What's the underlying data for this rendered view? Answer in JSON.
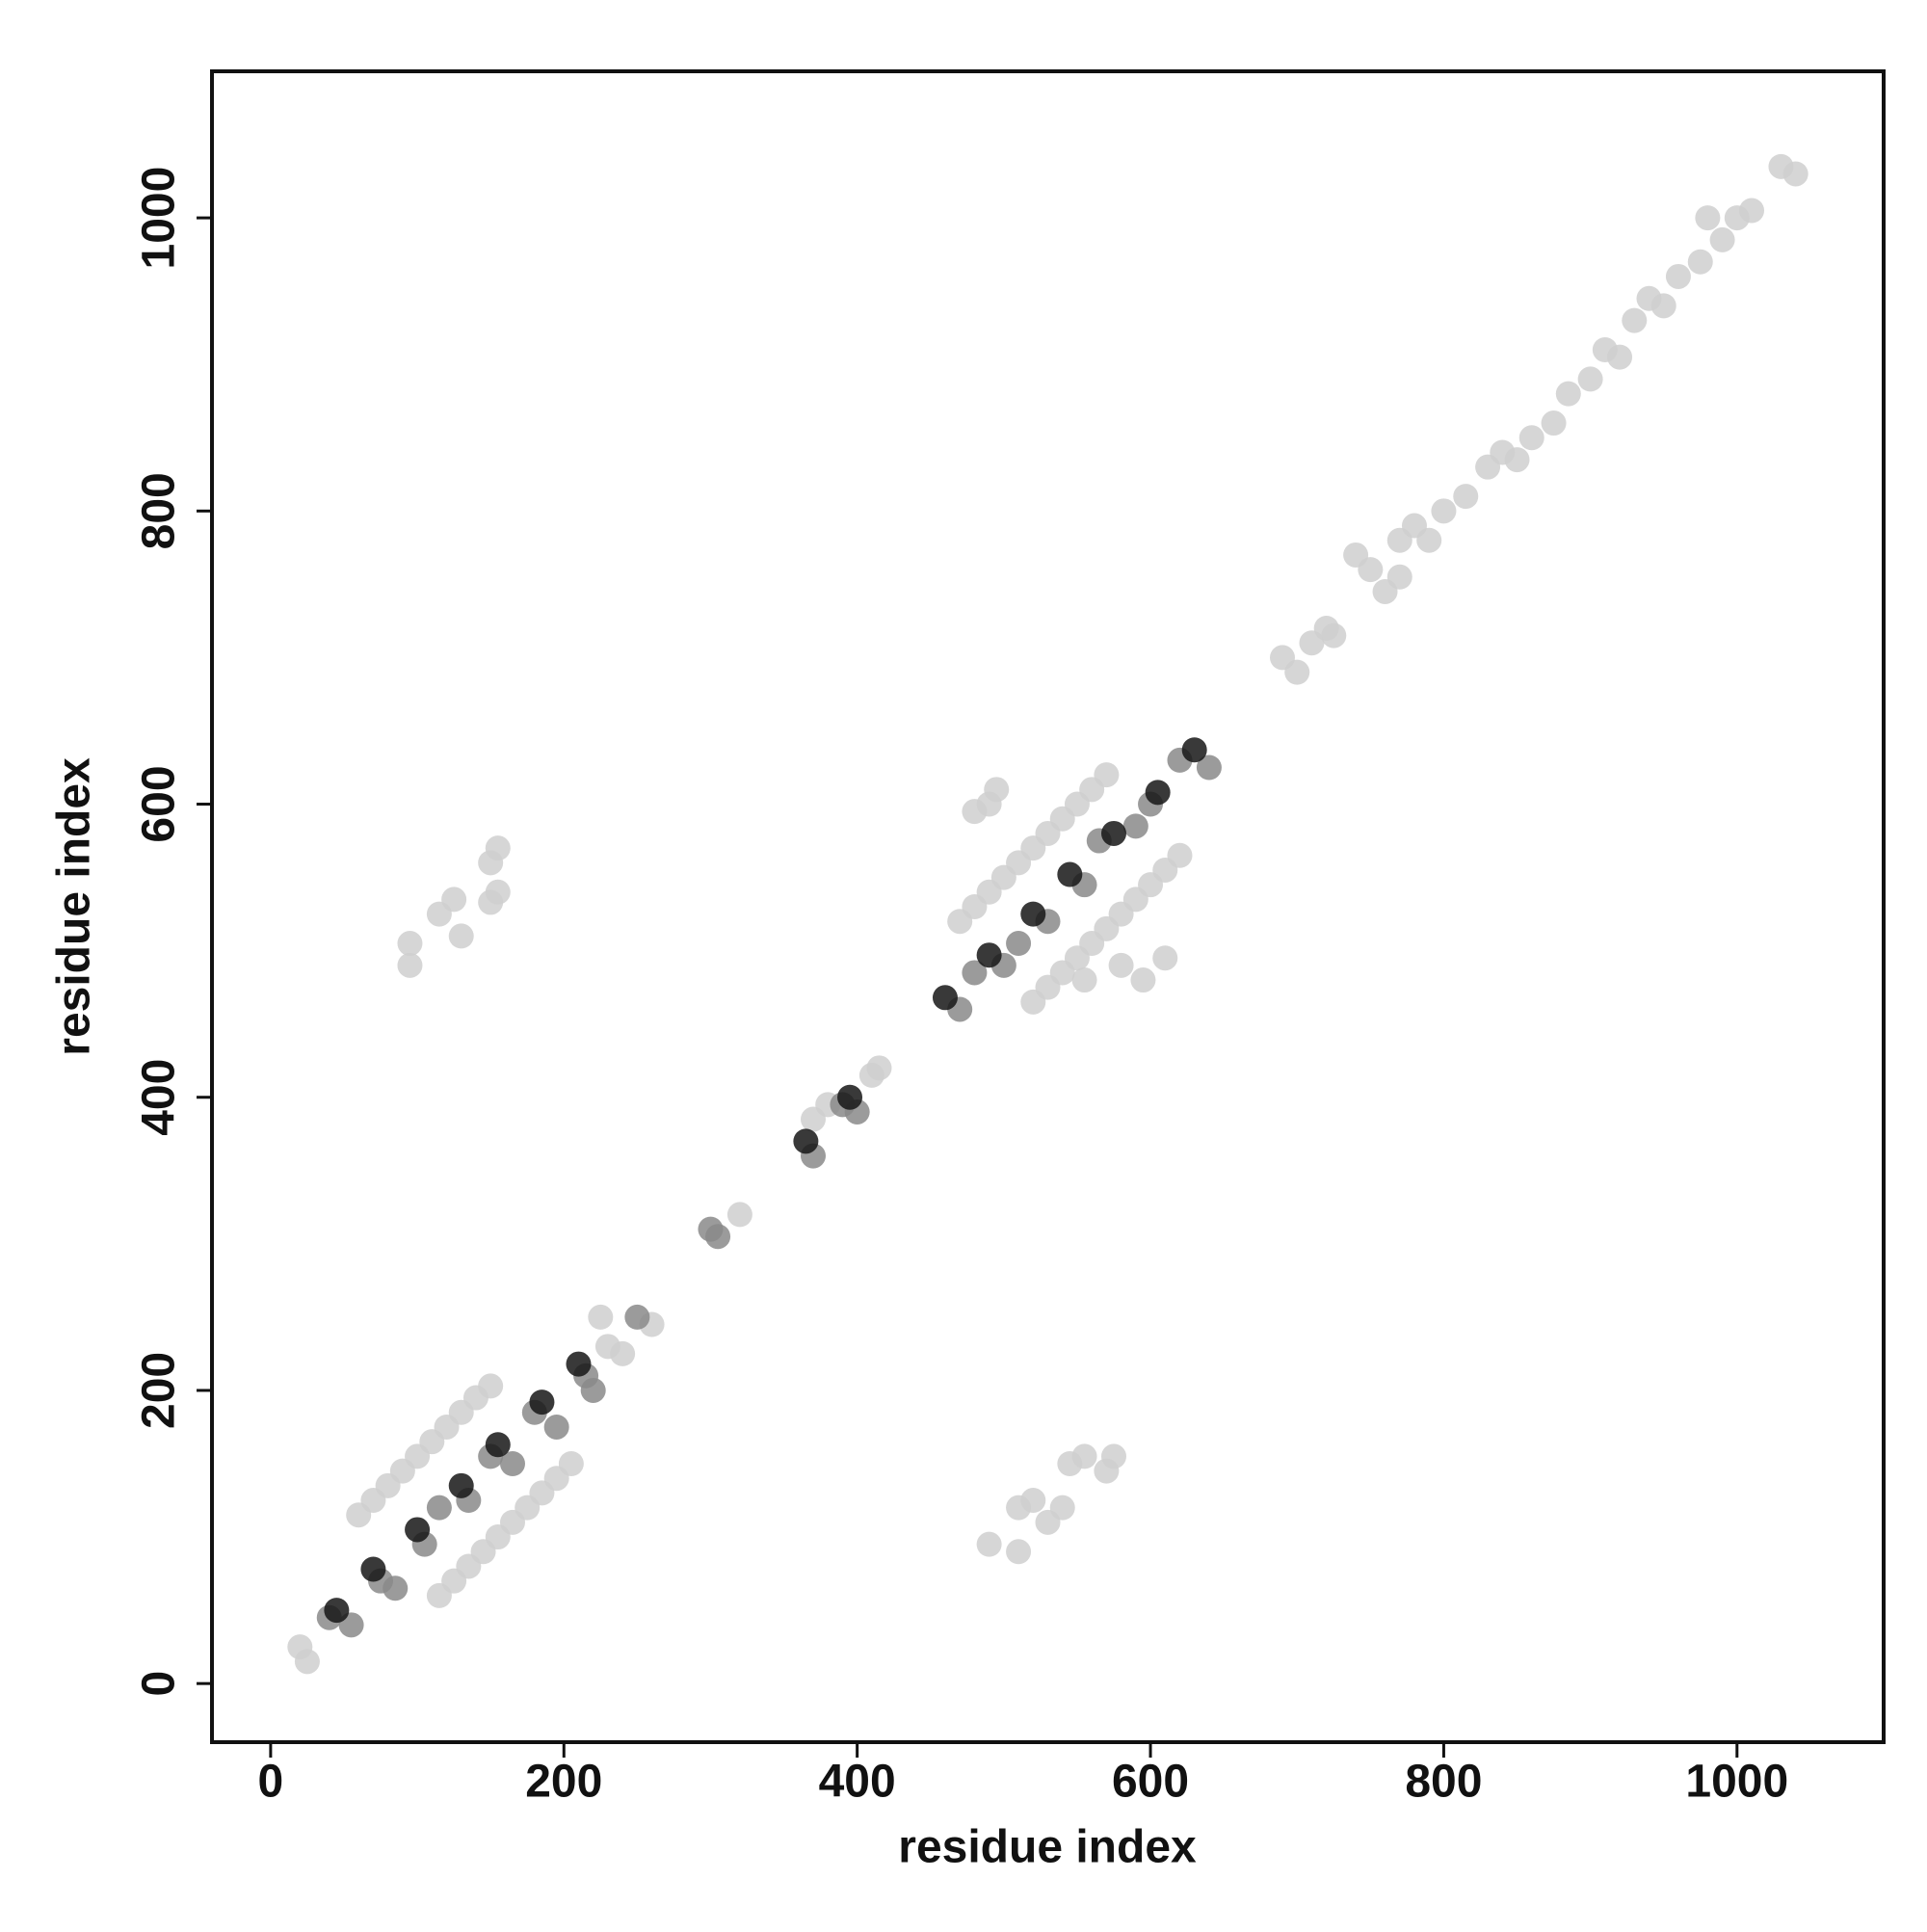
{
  "chart_data": {
    "type": "scatter",
    "xlabel": "residue index",
    "ylabel": "residue index",
    "xlim": [
      -40,
      1100
    ],
    "ylim": [
      -40,
      1100
    ],
    "xticks": [
      0,
      200,
      400,
      600,
      800,
      1000
    ],
    "yticks": [
      0,
      200,
      400,
      600,
      800,
      1000
    ],
    "series": [
      {
        "color": "#cfcfcf",
        "x": [
          60,
          70,
          80,
          90,
          100,
          110,
          120,
          130,
          140,
          150,
          115,
          125,
          135,
          145,
          155,
          165,
          175,
          185,
          195,
          205,
          20,
          25,
          95,
          95,
          115,
          125,
          130,
          150,
          155,
          155,
          150,
          490,
          510,
          510,
          520,
          530,
          540,
          545,
          555,
          570,
          575,
          470,
          480,
          490,
          500,
          510,
          520,
          530,
          540,
          550,
          560,
          570,
          520,
          530,
          540,
          550,
          560,
          570,
          580,
          590,
          600,
          610,
          620,
          490,
          495,
          480,
          555,
          580,
          595,
          610,
          230,
          240,
          225,
          260,
          320,
          370,
          380,
          410,
          415,
          690,
          700,
          710,
          725,
          720,
          740,
          750,
          760,
          770,
          770,
          780,
          790,
          800,
          815,
          830,
          840,
          850,
          860,
          875,
          885,
          900,
          910,
          920,
          930,
          940,
          950,
          960,
          975,
          980,
          990,
          1000,
          1010,
          1030,
          1040
        ],
        "values": [
          115,
          125,
          135,
          145,
          155,
          165,
          175,
          185,
          195,
          203,
          60,
          70,
          80,
          90,
          100,
          110,
          120,
          130,
          140,
          150,
          25,
          15,
          505,
          490,
          525,
          535,
          510,
          560,
          570,
          540,
          533,
          95,
          90,
          120,
          125,
          110,
          120,
          150,
          155,
          145,
          155,
          520,
          530,
          540,
          550,
          560,
          570,
          580,
          590,
          600,
          610,
          620,
          465,
          475,
          485,
          495,
          505,
          515,
          525,
          535,
          545,
          555,
          565,
          600,
          610,
          595,
          480,
          490,
          480,
          495,
          230,
          225,
          250,
          245,
          320,
          385,
          395,
          415,
          420,
          700,
          690,
          710,
          715,
          720,
          770,
          760,
          745,
          755,
          780,
          790,
          780,
          800,
          810,
          830,
          840,
          835,
          850,
          860,
          880,
          890,
          910,
          905,
          930,
          945,
          940,
          960,
          970,
          1000,
          985,
          1000,
          1005,
          1035,
          1030
        ]
      },
      {
        "color": "#8a8a8a",
        "x": [
          40,
          55,
          75,
          85,
          105,
          115,
          135,
          150,
          165,
          180,
          195,
          215,
          220,
          250,
          305,
          300,
          390,
          400,
          370,
          470,
          480,
          500,
          510,
          530,
          555,
          565,
          590,
          600,
          620,
          640
        ],
        "values": [
          45,
          40,
          70,
          65,
          95,
          120,
          125,
          155,
          150,
          185,
          175,
          210,
          200,
          250,
          305,
          310,
          395,
          390,
          360,
          460,
          485,
          490,
          505,
          520,
          545,
          575,
          585,
          600,
          630,
          625
        ]
      },
      {
        "color": "#161616",
        "x": [
          45,
          70,
          100,
          130,
          155,
          185,
          210,
          365,
          395,
          460,
          490,
          520,
          545,
          575,
          605,
          630
        ],
        "values": [
          50,
          78,
          105,
          135,
          163,
          192,
          218,
          370,
          400,
          468,
          497,
          525,
          552,
          580,
          608,
          637
        ]
      }
    ]
  }
}
